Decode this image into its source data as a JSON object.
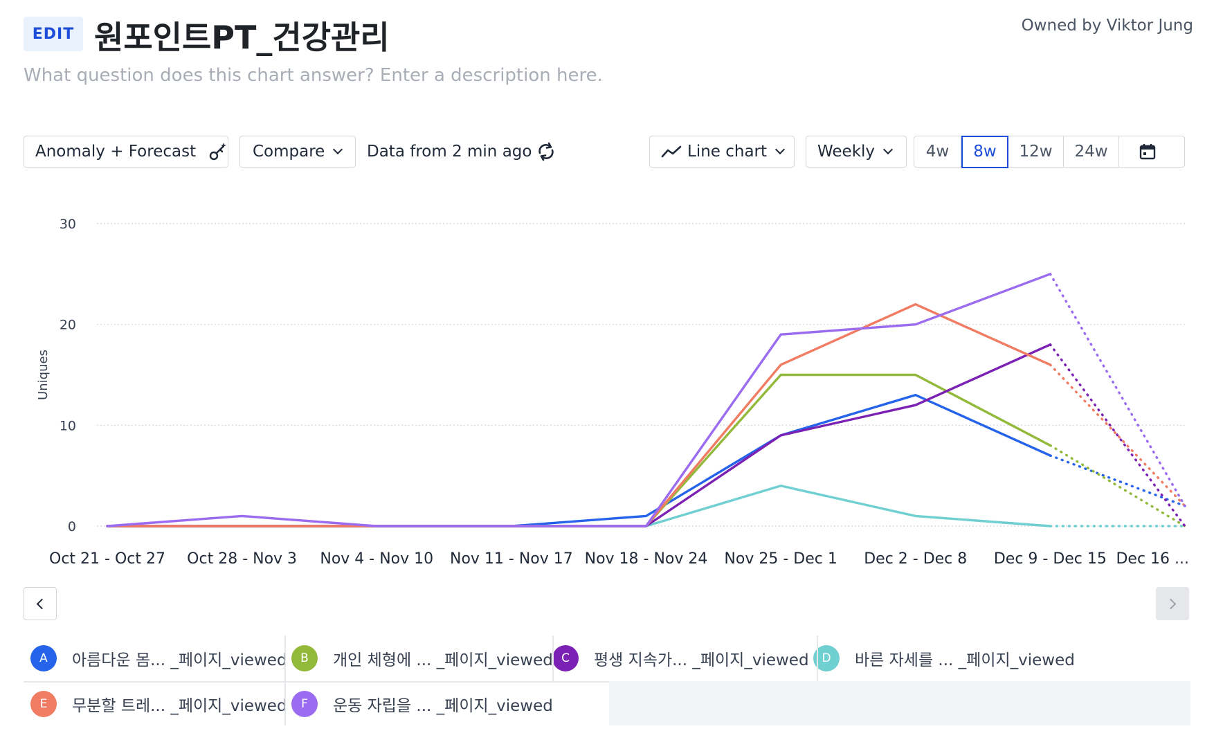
{
  "header": {
    "edit_label": "EDIT",
    "title": "원포인트PT_건강관리",
    "owner": "Owned by Viktor Jung",
    "description_placeholder": "What question does this chart answer? Enter a description here."
  },
  "toolbar": {
    "anomaly_label": "Anomaly + Forecast",
    "anomaly_icon": "magic-wand-icon",
    "compare_label": "Compare",
    "data_freshness": "Data from 2 min ago",
    "refresh_icon": "refresh-icon",
    "chart_type_label": "Line chart",
    "chart_type_icon": "line-chart-icon",
    "interval_label": "Weekly",
    "ranges": [
      "4w",
      "8w",
      "12w",
      "24w"
    ],
    "active_range": "8w",
    "calendar_icon": "calendar-icon"
  },
  "chart_data": {
    "type": "line",
    "ylabel": "Uniques",
    "xlabel": "",
    "ylim": [
      0,
      30
    ],
    "yticks": [
      0,
      10,
      20,
      30
    ],
    "grid": true,
    "categories": [
      "Oct 21 - Oct 27",
      "Oct 28 - Nov 3",
      "Nov 4 - Nov 10",
      "Nov 11 - Nov 17",
      "Nov 18 - Nov 24",
      "Nov 25 - Dec 1",
      "Dec 2 - Dec 8",
      "Dec 9 - Dec 15",
      "Dec 16 ..."
    ],
    "incomplete_last_period": true,
    "series": [
      {
        "name": "아름다운 몸... _페이지_viewed",
        "letter": "A",
        "color": "#2563eb",
        "values": [
          0,
          0,
          0,
          0,
          1,
          9,
          13,
          7,
          2
        ]
      },
      {
        "name": "개인 체형에 ... _페이지_viewed",
        "letter": "B",
        "color": "#93b93a",
        "values": [
          0,
          0,
          0,
          0,
          0,
          15,
          15,
          8,
          0
        ]
      },
      {
        "name": "평생 지속가... _페이지_viewed",
        "letter": "C",
        "color": "#7b22b4",
        "values": [
          0,
          0,
          0,
          0,
          0,
          9,
          12,
          18,
          0
        ]
      },
      {
        "name": "바른 자세를 ... _페이지_viewed",
        "letter": "D",
        "color": "#6fcfd1",
        "values": [
          0,
          0,
          0,
          0,
          0,
          4,
          1,
          0,
          0
        ]
      },
      {
        "name": "무분할 트레... _페이지_viewed",
        "letter": "E",
        "color": "#f07c63",
        "values": [
          0,
          0,
          0,
          0,
          0,
          16,
          22,
          16,
          2
        ]
      },
      {
        "name": "운동 자립을 ... _페이지_viewed",
        "letter": "F",
        "color": "#9b6cf0",
        "values": [
          0,
          1,
          0,
          0,
          0,
          19,
          20,
          25,
          2
        ]
      }
    ]
  }
}
